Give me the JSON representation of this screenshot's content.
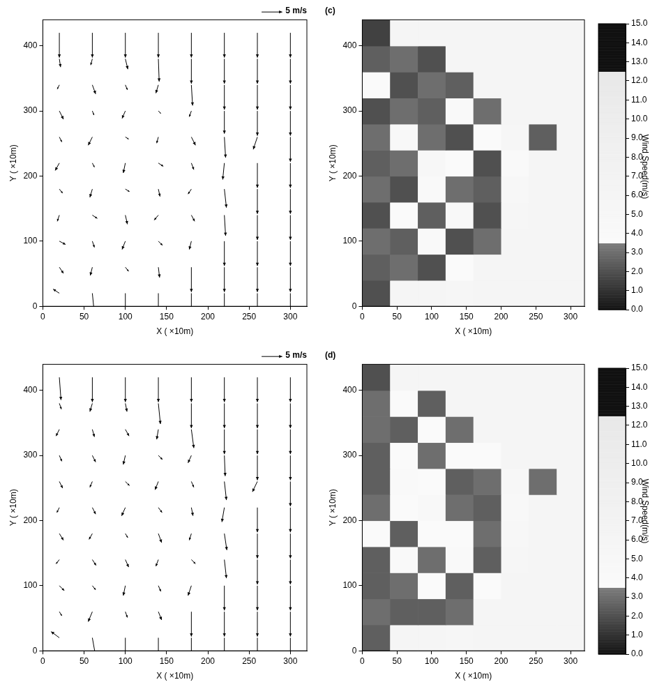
{
  "chart_data": [
    {
      "type": "quiver",
      "reference": {
        "value": 5,
        "label": "5 m/s"
      },
      "x_label": "X ( ×10m)",
      "y_label": "Y ( ×10m)",
      "xlim": [
        0,
        320
      ],
      "ylim": [
        0,
        440
      ],
      "xticks": [
        0,
        50,
        100,
        150,
        200,
        250,
        300
      ],
      "yticks": [
        0,
        100,
        200,
        300,
        400
      ],
      "x": [
        20,
        60,
        100,
        140,
        180,
        220,
        260,
        300
      ],
      "y": [
        20,
        60,
        100,
        140,
        180,
        220,
        260,
        300,
        340,
        380,
        420
      ],
      "u": [
        [
          -1.5,
          0.5,
          0,
          0,
          0,
          0,
          0,
          0
        ],
        [
          1.0,
          -0.5,
          0.8,
          0.3,
          0,
          0,
          0,
          0
        ],
        [
          1.5,
          0.5,
          -0.8,
          1.0,
          -0.5,
          0,
          0,
          0
        ],
        [
          -0.5,
          1.2,
          0.5,
          -1.0,
          0.8,
          0.3,
          0,
          0
        ],
        [
          0.8,
          -0.6,
          1.0,
          0.4,
          -0.8,
          0.5,
          0,
          0
        ],
        [
          -1.0,
          0.5,
          -0.5,
          1.2,
          0.6,
          -0.4,
          0,
          0
        ],
        [
          0.6,
          -1.0,
          0.8,
          -0.4,
          1.0,
          0.3,
          -1.0,
          0
        ],
        [
          1.0,
          0.4,
          -0.8,
          0.6,
          -0.5,
          0,
          0,
          0
        ],
        [
          -0.5,
          0.8,
          0.5,
          -0.6,
          0.3,
          0,
          0,
          0
        ],
        [
          0.3,
          -0.4,
          0.6,
          0.2,
          0,
          0,
          0,
          0
        ],
        [
          0,
          0,
          0,
          0,
          0,
          0,
          0,
          0
        ]
      ],
      "v": [
        [
          1.0,
          -5.0,
          -5.5,
          -6,
          -6,
          -6,
          -6,
          -6
        ],
        [
          -1.5,
          -2.0,
          -1.0,
          -2.5,
          -6,
          -6,
          -6,
          -6
        ],
        [
          -0.8,
          -1.5,
          -2.0,
          -1.0,
          -2.0,
          -6,
          -6,
          -6
        ],
        [
          -1.5,
          -0.8,
          -2.2,
          -1.2,
          -1.5,
          -5.0,
          -6,
          -6
        ],
        [
          -1.0,
          -2.0,
          -0.6,
          -1.8,
          -1.2,
          -4.5,
          -6,
          -6
        ],
        [
          -1.8,
          -1.0,
          -2.4,
          -0.8,
          -1.6,
          -4.0,
          -6,
          -6
        ],
        [
          -1.2,
          -2.0,
          -0.5,
          -1.5,
          -2.0,
          -5.0,
          -3.0,
          -6
        ],
        [
          -2.0,
          -1.0,
          -1.8,
          -0.6,
          -1.4,
          -5.5,
          -6,
          -6
        ],
        [
          -1.0,
          -2.2,
          -1.2,
          -2.0,
          -5.0,
          -6,
          -6,
          -6
        ],
        [
          -2.0,
          -1.5,
          -2.5,
          -5.5,
          -6,
          -6,
          -6,
          -6
        ],
        [
          -6,
          -6,
          -6,
          -6,
          -6,
          -6,
          -6,
          -6
        ]
      ],
      "color": "#000000"
    },
    {
      "type": "heatmap",
      "title": "(c)",
      "x_label": "X ( ×10m)",
      "y_label": "Y ( ×10m)",
      "xlim": [
        0,
        320
      ],
      "ylim": [
        0,
        440
      ],
      "xticks": [
        0,
        50,
        100,
        150,
        200,
        250,
        300
      ],
      "yticks": [
        0,
        100,
        200,
        300,
        400
      ],
      "x": [
        20,
        60,
        100,
        140,
        180,
        220,
        260,
        300
      ],
      "y": [
        20,
        60,
        100,
        140,
        180,
        220,
        260,
        300,
        340,
        380,
        420
      ],
      "speed": [
        [
          2.0,
          6.0,
          6.0,
          5.5,
          6.0,
          6.0,
          6.0,
          6.0
        ],
        [
          2.5,
          3.0,
          2.0,
          3.5,
          6.0,
          6.0,
          6.0,
          6.0
        ],
        [
          3.0,
          2.5,
          4.0,
          2.0,
          3.0,
          6.0,
          6.0,
          6.0
        ],
        [
          2.0,
          3.5,
          2.5,
          4.5,
          2.0,
          5.5,
          6.0,
          6.0
        ],
        [
          3.0,
          2.0,
          4.0,
          3.0,
          2.5,
          5.0,
          6.0,
          6.0
        ],
        [
          2.5,
          3.0,
          5.0,
          3.5,
          2.0,
          4.0,
          6.0,
          6.0
        ],
        [
          3.0,
          4.5,
          3.0,
          2.0,
          3.5,
          5.5,
          2.5,
          6.0
        ],
        [
          2.0,
          3.0,
          2.5,
          4.0,
          3.0,
          6.0,
          6.0,
          6.0
        ],
        [
          3.5,
          2.0,
          3.0,
          2.5,
          6.0,
          6.0,
          6.0,
          6.0
        ],
        [
          2.5,
          3.0,
          2.0,
          6.0,
          6.0,
          6.0,
          6.0,
          6.0
        ],
        [
          1.5,
          6.0,
          6.0,
          6.0,
          6.0,
          6.0,
          6.0,
          6.0
        ]
      ],
      "colorbar": {
        "title": "Wind Speed(m/s)",
        "range": [
          0,
          15
        ],
        "ticks": [
          {
            "value": 0,
            "label": "0.0"
          },
          {
            "value": 1,
            "label": "1.0"
          },
          {
            "value": 2,
            "label": "2.0"
          },
          {
            "value": 3,
            "label": "3.0"
          },
          {
            "value": 4,
            "label": "4.0"
          },
          {
            "value": 5,
            "label": "5.0"
          },
          {
            "value": 6,
            "label": "6.0"
          },
          {
            "value": 7,
            "label": "7.0"
          },
          {
            "value": 8,
            "label": "8.0"
          },
          {
            "value": 9,
            "label": "9.0"
          },
          {
            "value": 10,
            "label": "10.0"
          },
          {
            "value": 11,
            "label": "11.0"
          },
          {
            "value": 12,
            "label": "12.0"
          },
          {
            "value": 13,
            "label": "13.0"
          },
          {
            "value": 14,
            "label": "14.0"
          },
          {
            "value": 15,
            "label": "15.0"
          }
        ]
      }
    },
    {
      "type": "quiver",
      "reference": {
        "value": 5,
        "label": "5 m/s"
      },
      "x_label": "X ( ×10m)",
      "y_label": "Y ( ×10m)",
      "xlim": [
        0,
        320
      ],
      "ylim": [
        0,
        440
      ],
      "xticks": [
        0,
        50,
        100,
        150,
        200,
        250,
        300
      ],
      "yticks": [
        0,
        100,
        200,
        300,
        400
      ],
      "x": [
        20,
        60,
        100,
        140,
        180,
        220,
        260,
        300
      ],
      "y": [
        20,
        60,
        100,
        140,
        180,
        220,
        260,
        300,
        340,
        380,
        420
      ],
      "u": [
        [
          -2.0,
          0.8,
          0,
          0,
          0,
          0,
          0,
          0
        ],
        [
          0.6,
          -1.0,
          0.5,
          0.8,
          0,
          0,
          0,
          0
        ],
        [
          1.2,
          0.8,
          -0.5,
          0.6,
          -0.8,
          0,
          0,
          0
        ],
        [
          -0.8,
          0.9,
          0.8,
          -0.6,
          1.0,
          0.5,
          0,
          0
        ],
        [
          1.0,
          -0.8,
          0.6,
          0.8,
          -0.5,
          0.6,
          0,
          0
        ],
        [
          -0.6,
          0.8,
          -0.9,
          0.9,
          0.4,
          -0.6,
          0,
          0
        ],
        [
          0.8,
          -0.6,
          1.0,
          -0.8,
          0.6,
          0.5,
          -1.2,
          0
        ],
        [
          0.6,
          0.8,
          -0.5,
          1.0,
          -0.8,
          0.2,
          0,
          0
        ],
        [
          -0.8,
          0.5,
          0.9,
          -0.4,
          0.6,
          0,
          0,
          0
        ],
        [
          0.5,
          -0.6,
          0.4,
          0.5,
          0,
          0,
          0,
          0
        ],
        [
          0.4,
          0,
          0,
          0,
          0,
          0,
          0,
          0
        ]
      ],
      "v": [
        [
          1.5,
          -4.5,
          -5.5,
          -6,
          -6,
          -6,
          -6,
          -6
        ],
        [
          -1.0,
          -2.4,
          -1.4,
          -2.0,
          -6,
          -6,
          -6,
          -6
        ],
        [
          -1.2,
          -1.0,
          -2.4,
          -1.4,
          -2.4,
          -6,
          -6,
          -6
        ],
        [
          -1.0,
          -1.4,
          -1.8,
          -1.6,
          -1.0,
          -4.5,
          -6,
          -6
        ],
        [
          -1.6,
          -1.4,
          -1.0,
          -2.2,
          -1.6,
          -4.0,
          -6,
          -6
        ],
        [
          -1.2,
          -1.6,
          -2.0,
          -1.2,
          -2.0,
          -3.5,
          -6,
          -6
        ],
        [
          -1.6,
          -1.4,
          -1.0,
          -2.0,
          -1.4,
          -4.5,
          -2.5,
          -6
        ],
        [
          -1.4,
          -1.6,
          -2.2,
          -1.0,
          -1.8,
          -5.0,
          -6,
          -6
        ],
        [
          -1.6,
          -1.8,
          -1.6,
          -2.4,
          -4.5,
          -6,
          -6,
          -6
        ],
        [
          -1.4,
          -2.0,
          -2.0,
          -5.0,
          -6,
          -6,
          -6,
          -6
        ],
        [
          -5.5,
          -6,
          -6,
          -6,
          -6,
          -6,
          -6,
          -6
        ]
      ],
      "color": "#000000"
    },
    {
      "type": "heatmap",
      "title": "(d)",
      "x_label": "X ( ×10m)",
      "y_label": "Y ( ×10m)",
      "xlim": [
        0,
        320
      ],
      "ylim": [
        0,
        440
      ],
      "xticks": [
        0,
        50,
        100,
        150,
        200,
        250,
        300
      ],
      "yticks": [
        0,
        100,
        200,
        300,
        400
      ],
      "x": [
        20,
        60,
        100,
        140,
        180,
        220,
        260,
        300
      ],
      "y": [
        20,
        60,
        100,
        140,
        180,
        220,
        260,
        300,
        340,
        380,
        420
      ],
      "speed": [
        [
          2.5,
          6.0,
          6.0,
          5.5,
          6.0,
          6.0,
          6.0,
          6.0
        ],
        [
          3.0,
          2.5,
          2.5,
          3.0,
          6.0,
          6.0,
          6.0,
          6.0
        ],
        [
          2.5,
          3.0,
          3.5,
          2.5,
          3.5,
          6.0,
          6.0,
          6.0
        ],
        [
          2.5,
          4.0,
          3.0,
          4.0,
          2.5,
          5.5,
          6.0,
          6.0
        ],
        [
          3.5,
          2.5,
          3.5,
          3.5,
          3.0,
          5.0,
          6.0,
          6.0
        ],
        [
          3.0,
          3.5,
          4.5,
          3.0,
          2.5,
          4.5,
          6.0,
          6.0
        ],
        [
          2.5,
          4.0,
          3.5,
          2.5,
          3.0,
          5.0,
          3.0,
          6.0
        ],
        [
          2.5,
          3.5,
          3.0,
          3.5,
          3.5,
          6.0,
          6.0,
          6.0
        ],
        [
          3.0,
          2.5,
          3.5,
          3.0,
          6.0,
          6.0,
          6.0,
          6.0
        ],
        [
          3.0,
          3.5,
          2.5,
          6.0,
          6.0,
          6.0,
          6.0,
          6.0
        ],
        [
          2.0,
          6.0,
          6.0,
          6.0,
          6.0,
          6.0,
          6.0,
          6.0
        ]
      ],
      "colorbar": {
        "title": "Wind Speed(m/s)",
        "range": [
          0,
          15
        ],
        "ticks": [
          {
            "value": 0,
            "label": "0.0"
          },
          {
            "value": 1,
            "label": "1.0"
          },
          {
            "value": 2,
            "label": "2.0"
          },
          {
            "value": 3,
            "label": "3.0"
          },
          {
            "value": 4,
            "label": "4.0"
          },
          {
            "value": 5,
            "label": "5.0"
          },
          {
            "value": 6,
            "label": "6.0"
          },
          {
            "value": 7,
            "label": "7.0"
          },
          {
            "value": 8,
            "label": "8.0"
          },
          {
            "value": 9,
            "label": "9.0"
          },
          {
            "value": 10,
            "label": "10.0"
          },
          {
            "value": 11,
            "label": "11.0"
          },
          {
            "value": 12,
            "label": "12.0"
          },
          {
            "value": 13,
            "label": "13.0"
          },
          {
            "value": 14,
            "label": "14.0"
          },
          {
            "value": 15,
            "label": "15.0"
          }
        ]
      }
    }
  ]
}
